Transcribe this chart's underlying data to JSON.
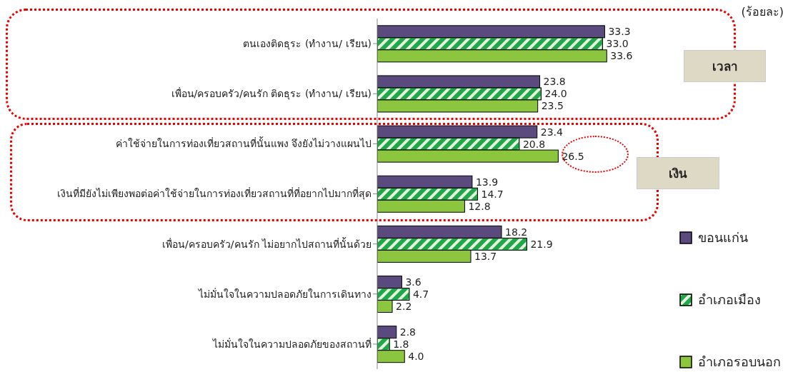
{
  "chart_data": {
    "type": "bar",
    "orientation": "horizontal",
    "categories": [
      "ตนเองติดธุระ (ทำงาน/ เรียน)",
      "เพื่อน/ครอบครัว/คนรัก ติดธุระ (ทำงาน/ เรียน)",
      "ค่าใช้จ่ายในการท่องเที่ยวสถานที่นั้นแพง จึงยังไม่วางแผนไป",
      "เงินที่มียังไม่เพียงพอต่อค่าใช้จ่ายในการท่องเที่ยวสถานที่ที่อยากไปมากที่สุด",
      "เพื่อน/ครอบครัว/คนรัก ไม่อยากไปสถานที่นั้นด้วย",
      "ไม่มั่นใจในความปลอดภัยในการเดินทาง",
      "ไม่มั่นใจในความปลอดภัยของสถานที่"
    ],
    "series": [
      {
        "name": "ขอนแก่น",
        "color": "#5b4a7e",
        "values": [
          33.3,
          23.8,
          23.4,
          13.9,
          18.2,
          3.6,
          2.8
        ],
        "value_labels": [
          "33.3",
          "23.8",
          "23.4",
          "13.9",
          "18.2",
          "3.6",
          "2.8"
        ]
      },
      {
        "name": "อำเภอเมือง",
        "color": "#1fa84a",
        "values": [
          33.0,
          24.0,
          20.8,
          14.7,
          21.9,
          4.7,
          1.8
        ],
        "value_labels": [
          "33.0",
          "24.0",
          "20.8",
          "14.7",
          "21.9",
          "4.7",
          "1.8"
        ]
      },
      {
        "name": "อำเภอรอบนอก",
        "color": "#8cc63f",
        "values": [
          33.6,
          23.5,
          26.5,
          12.8,
          13.7,
          2.2,
          4.0
        ],
        "value_labels": [
          "33.6",
          "23.5",
          "26.5",
          "12.8",
          "13.7",
          "2.2",
          "4.0"
        ]
      }
    ],
    "xlim": [
      0,
      57
    ],
    "tick_labels": "y",
    "legend": "bottom right",
    "grid": false,
    "annotations": [
      "(ร้อยละ)",
      "เวลา",
      "เงิน"
    ]
  }
}
